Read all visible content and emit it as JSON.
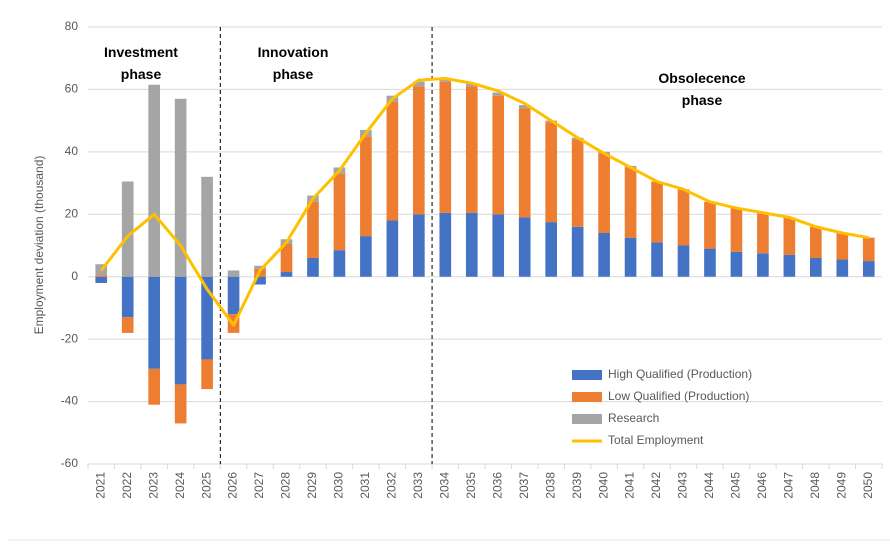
{
  "chart_data": {
    "type": "bar",
    "stacked": true,
    "y_label": "Employment deviation (thousand)",
    "categories": [
      "2021",
      "2022",
      "2023",
      "2024",
      "2025",
      "2026",
      "2027",
      "2028",
      "2029",
      "2030",
      "2031",
      "2032",
      "2033",
      "2034",
      "2035",
      "2036",
      "2037",
      "2038",
      "2039",
      "2040",
      "2041",
      "2042",
      "2043",
      "2044",
      "2045",
      "2046",
      "2047",
      "2048",
      "2049",
      "2050"
    ],
    "series": [
      {
        "name": "High Qualified (Production)",
        "color": "#4472c4",
        "values": [
          -2,
          -13,
          -29.5,
          -34.5,
          -26.5,
          -12,
          -2.5,
          1.5,
          6,
          8.5,
          13,
          18,
          20,
          20.5,
          20.5,
          20,
          19,
          17.5,
          16,
          14,
          12.5,
          11,
          10,
          9,
          8,
          7.5,
          7,
          6,
          5.5,
          5
        ]
      },
      {
        "name": "Low Qualified (Production)",
        "color": "#ed7d31",
        "values": [
          0.5,
          -5,
          -11.5,
          -12.5,
          -9.5,
          -6,
          2.5,
          9,
          18,
          24.5,
          32,
          38,
          41,
          42,
          40.5,
          38,
          35,
          32,
          28,
          25.5,
          22.5,
          19.5,
          18,
          15,
          14,
          13,
          12,
          10,
          8.5,
          7.5
        ]
      },
      {
        "name": "Research",
        "color": "#a5a5a5",
        "values": [
          3.5,
          30.5,
          61.5,
          57,
          32,
          2,
          1,
          1.5,
          2,
          2,
          2,
          2,
          1.5,
          1,
          1,
          1,
          1,
          0.5,
          0.5,
          0.5,
          0.5,
          0,
          0,
          0,
          0,
          0,
          0,
          0,
          0,
          0
        ]
      },
      {
        "name": "Total Employment",
        "color": "#ffc000",
        "type": "line",
        "values": [
          2,
          13,
          20,
          10,
          -4,
          -15.5,
          2,
          11,
          25,
          34,
          46,
          57,
          63,
          63.5,
          62,
          59.5,
          55.5,
          50,
          44.5,
          39.5,
          35,
          30.5,
          28,
          24,
          22,
          20.5,
          19,
          16,
          14,
          12.5
        ]
      }
    ],
    "annotations": [
      "Investment phase",
      "Innovation phase",
      "Obsolecence phase"
    ],
    "ylim": [
      -60,
      80
    ],
    "yticks": [
      -60,
      -40,
      -20,
      0,
      20,
      40,
      60,
      80
    ],
    "grid": true,
    "legend": "lower right"
  }
}
